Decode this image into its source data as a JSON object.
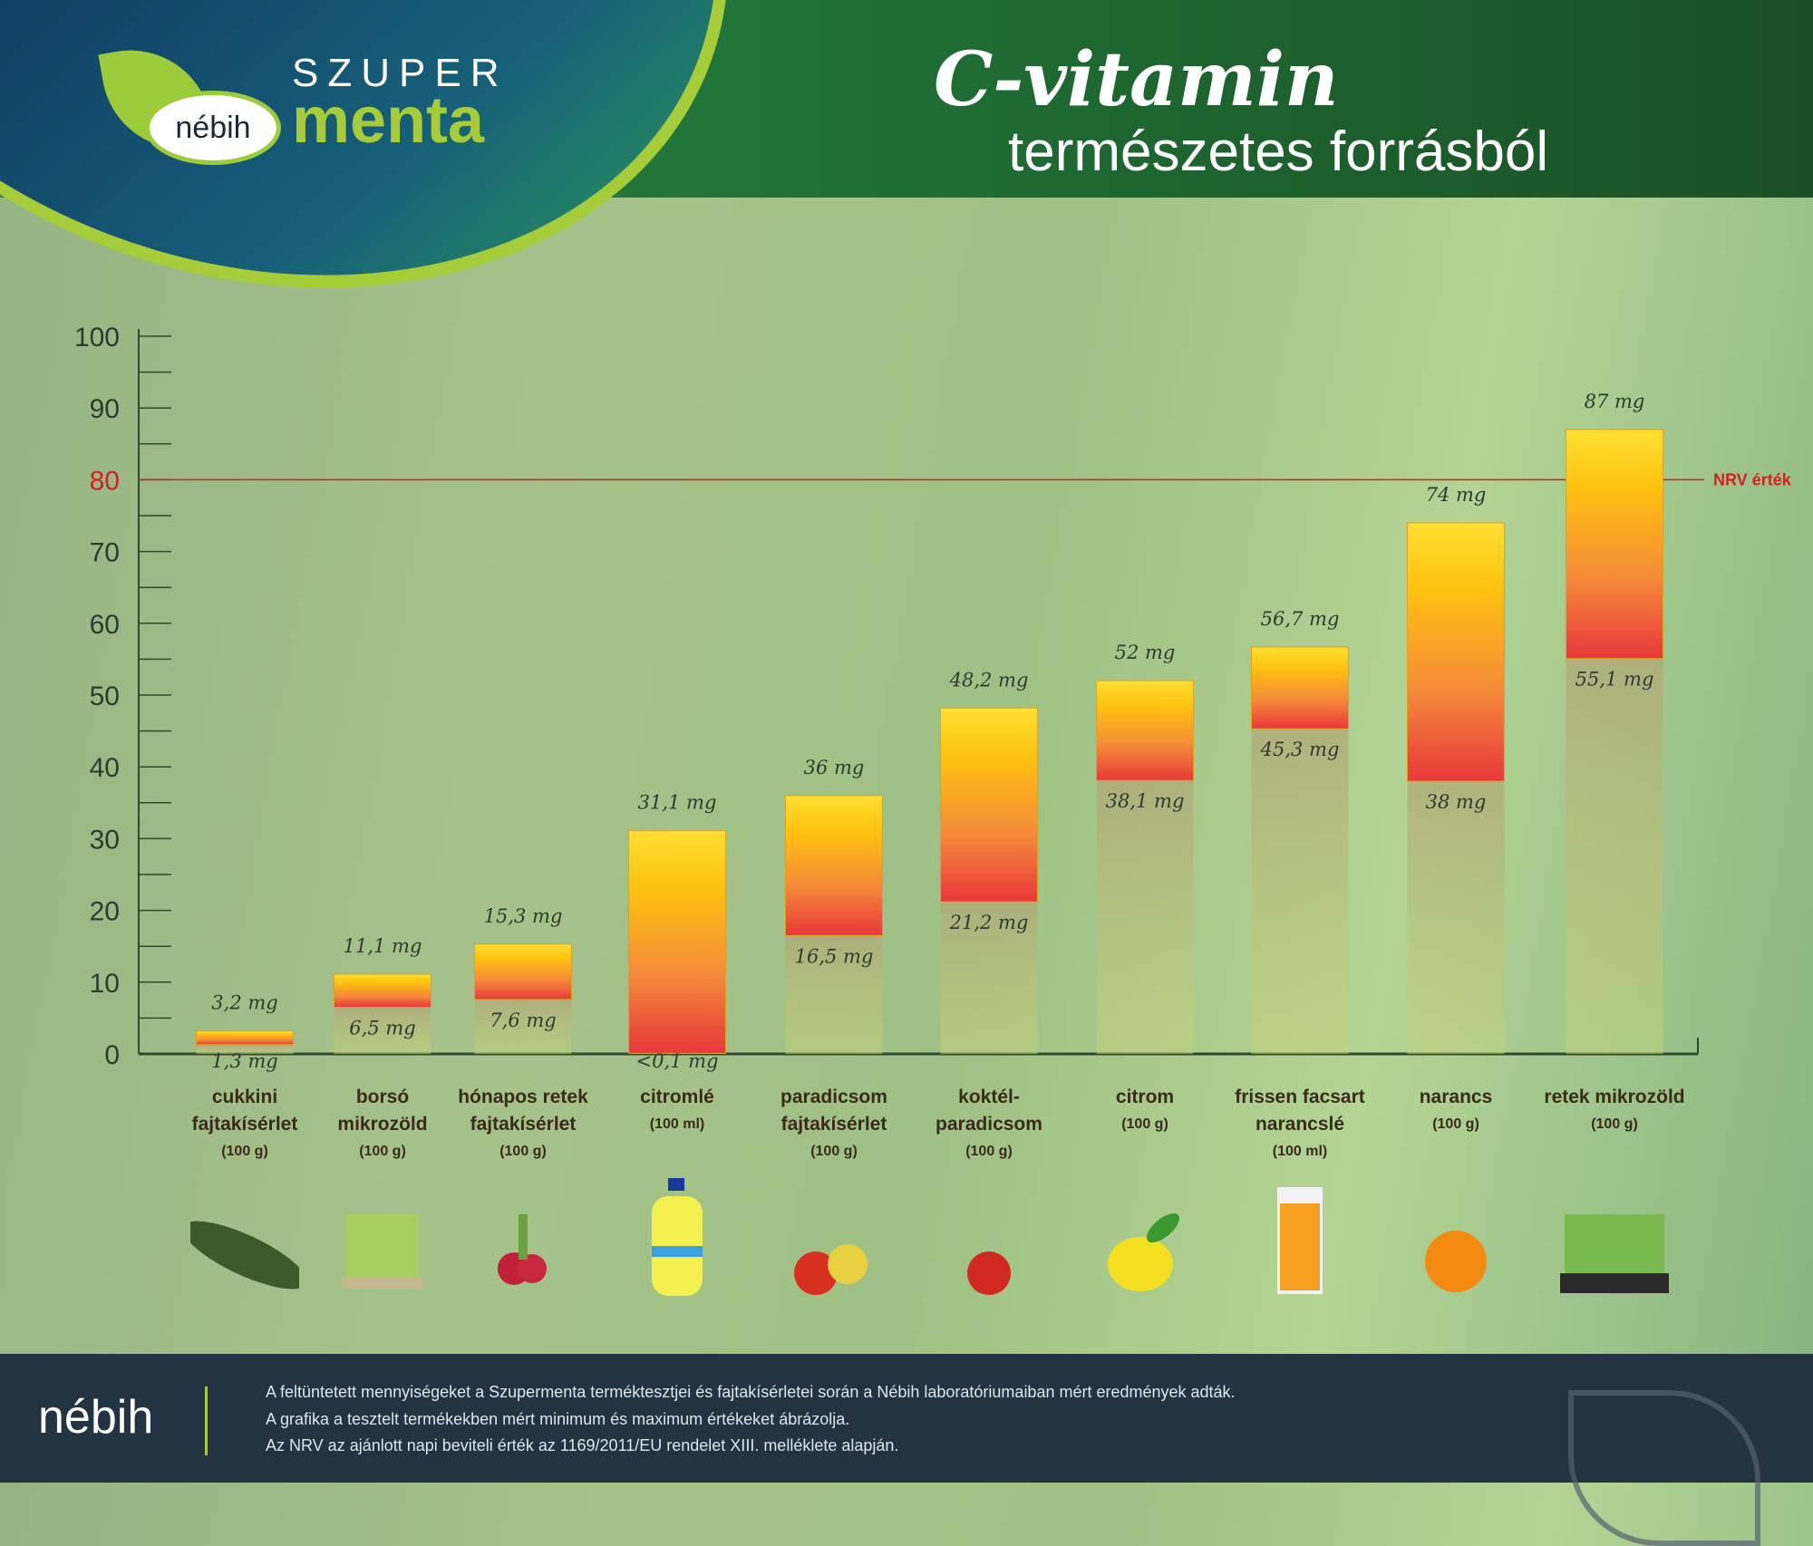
{
  "header": {
    "brand_top": "SZUPER",
    "brand_bottom": "menta",
    "badge": "nébih",
    "title": "C-vitamin",
    "subtitle": "természetes forrásból"
  },
  "colors": {
    "bar_top": "#ffe033",
    "bar_mid": "#f6a12e",
    "bar_bottom": "#e8383a",
    "nrv": "#d42020",
    "axis": "#2e4a2e"
  },
  "chart_data": {
    "type": "bar",
    "subtype": "floating range (min–max)",
    "ylim": [
      0,
      100
    ],
    "yticks": [
      0,
      10,
      20,
      30,
      40,
      50,
      60,
      70,
      80,
      90,
      100
    ],
    "grid": false,
    "reference_line": {
      "value": 80,
      "label": "NRV érték"
    },
    "categories": [
      {
        "name": [
          "cukkini",
          "fajtakísérlet"
        ],
        "unit": "(100 g)",
        "icon": "zucchini-icon"
      },
      {
        "name": [
          "borsó",
          "mikrozöld"
        ],
        "unit": "(100 g)",
        "icon": "pea-microgreen-icon"
      },
      {
        "name": [
          "hónapos retek",
          "fajtakísérlet"
        ],
        "unit": "(100 g)",
        "icon": "radish-icon"
      },
      {
        "name": [
          "citromlé"
        ],
        "unit": "(100 ml)",
        "icon": "lemon-juice-bottle-icon"
      },
      {
        "name": [
          "paradicsom",
          "fajtakísérlet"
        ],
        "unit": "(100 g)",
        "icon": "tomatoes-icon"
      },
      {
        "name": [
          "koktél-",
          "paradicsom"
        ],
        "unit": "(100 g)",
        "icon": "cherry-tomato-icon"
      },
      {
        "name": [
          "citrom"
        ],
        "unit": "(100 g)",
        "icon": "lemon-icon"
      },
      {
        "name": [
          "frissen facsart",
          "narancslé"
        ],
        "unit": "(100 ml)",
        "icon": "orange-juice-glass-icon"
      },
      {
        "name": [
          "narancs"
        ],
        "unit": "(100 g)",
        "icon": "orange-icon"
      },
      {
        "name": [
          "retek mikrozöld"
        ],
        "unit": "(100 g)",
        "icon": "radish-microgreen-icon"
      }
    ],
    "min": [
      1.3,
      6.5,
      7.6,
      0.1,
      16.5,
      21.2,
      38.1,
      45.3,
      38,
      55.1
    ],
    "max": [
      3.2,
      11.1,
      15.3,
      31.1,
      36,
      48.2,
      52,
      56.7,
      74,
      87
    ],
    "min_labels": [
      "1,3 mg",
      "6,5 mg",
      "7,6 mg",
      "<0,1 mg",
      "16,5 mg",
      "21,2 mg",
      "38,1 mg",
      "45,3 mg",
      "38 mg",
      "55,1 mg"
    ],
    "max_labels": [
      "3,2 mg",
      "11,1 mg",
      "15,3 mg",
      "31,1 mg",
      "36 mg",
      "48,2 mg",
      "52 mg",
      "56,7 mg",
      "74 mg",
      "87 mg"
    ]
  },
  "footer": {
    "logo": "nébih",
    "lines": [
      "A feltüntetett mennyiségeket a Szupermenta terméktesztjei és fajtakísérletei során a Nébih laboratóriumaiban mért eredmények adták.",
      "A grafika a tesztelt termékekben mért minimum és maximum értékeket ábrázolja.",
      "Az NRV az ajánlott napi beviteli érték az 1169/2011/EU rendelet XIII. melléklete alapján."
    ]
  }
}
